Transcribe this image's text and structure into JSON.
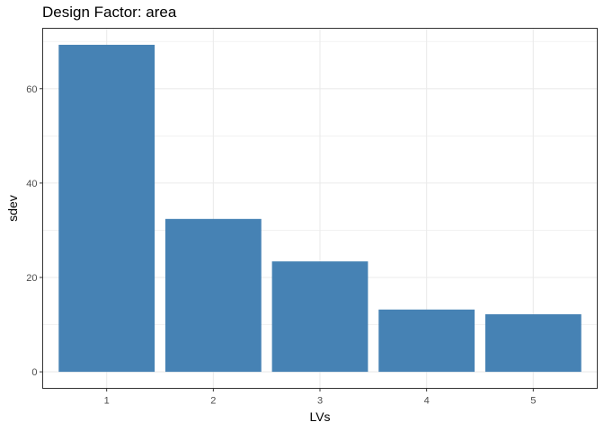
{
  "chart_data": {
    "type": "bar",
    "title": "Design Factor: area",
    "xlabel": "LVs",
    "ylabel": "sdev",
    "categories": [
      "1",
      "2",
      "3",
      "4",
      "5"
    ],
    "values": [
      69.3,
      32.4,
      23.4,
      13.2,
      12.2
    ],
    "ylim": [
      -3.5,
      72.8
    ],
    "yticks": [
      0,
      20,
      40,
      60
    ],
    "grid": true,
    "legend": "none",
    "bar_color": "#4682b4",
    "panel_border_color": "#333333",
    "grid_color": "#ebebeb"
  }
}
